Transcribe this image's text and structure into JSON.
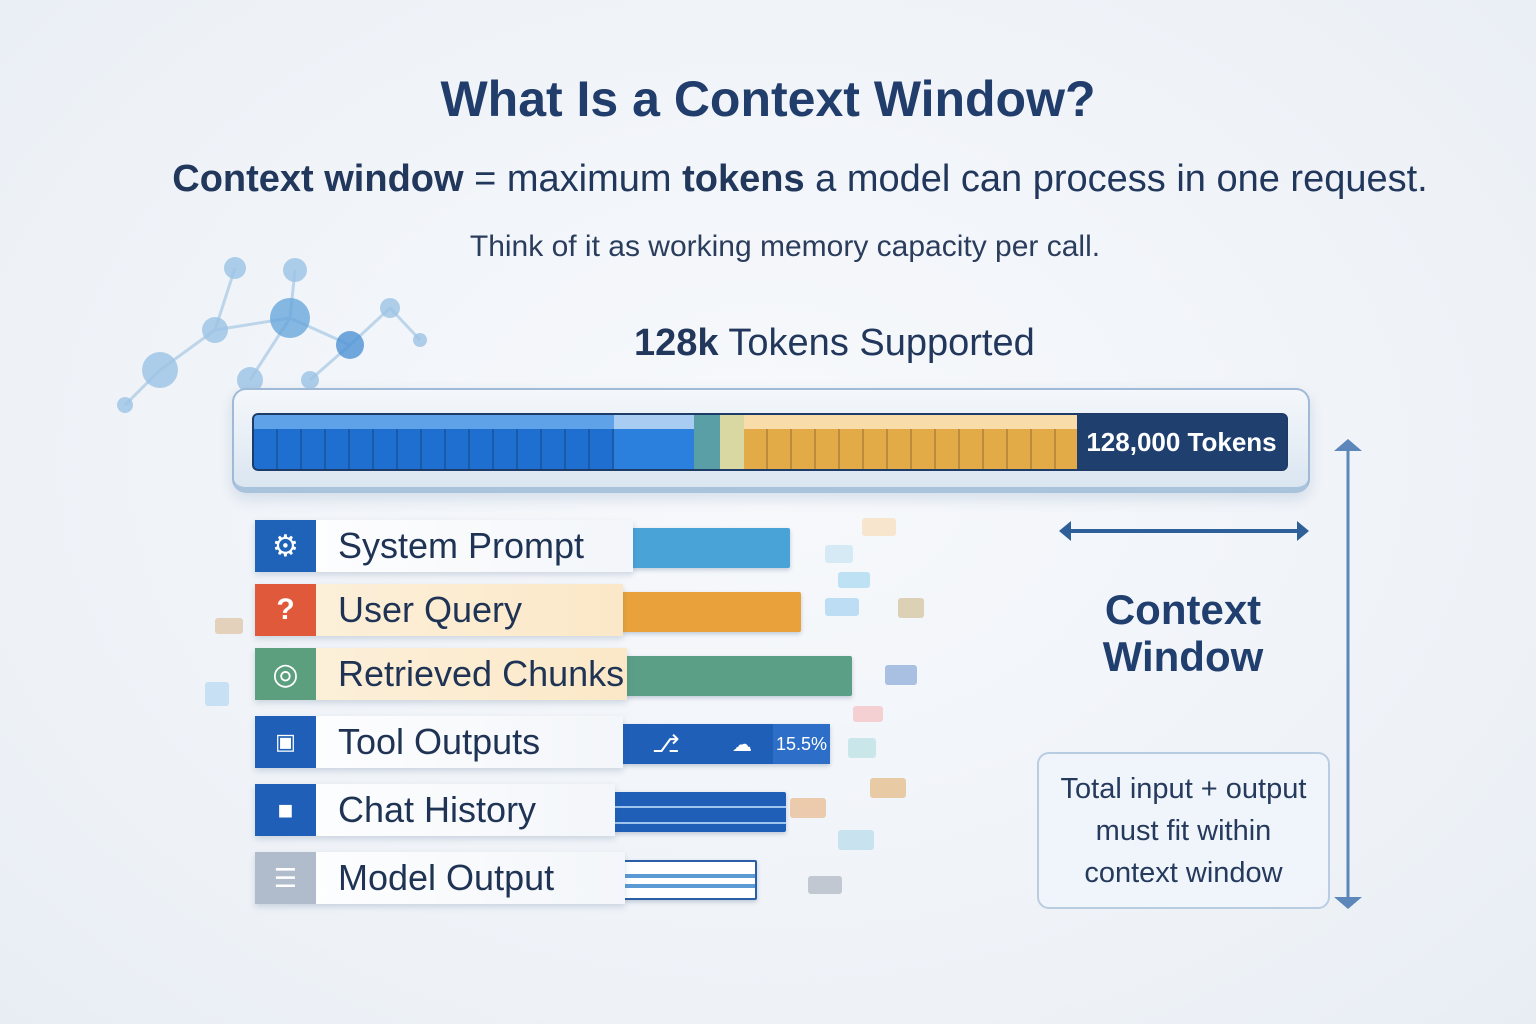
{
  "title": "What Is a Context Window?",
  "subtitle": {
    "term": "Context window",
    "eq": " = maximum ",
    "tokens": "tokens",
    "rest": " a model can process in one request."
  },
  "tagline": "Think of it as working memory capacity per call.",
  "supported": {
    "amount": "128k",
    "text": " Tokens Supported"
  },
  "bar": {
    "label": "128,000 Tokens",
    "colors": [
      "#1f6fd0",
      "#3e8fe0",
      "#5aa0a8",
      "#d8d6a0",
      "#e3ab48",
      "#1f3f6e"
    ]
  },
  "components": [
    {
      "label": "System Prompt",
      "icon": "gear-icon",
      "icon_color": "#1f63b8",
      "bar_color": "#4aa3d6"
    },
    {
      "label": "User Query",
      "icon": "question-icon",
      "icon_color": "#e0593a",
      "bar_color": "#e9a23b"
    },
    {
      "label": "Retrieved Chunks",
      "icon": "globe-icon",
      "icon_color": "#5c9f7e",
      "bar_color": "#5b9f86"
    },
    {
      "label": "Tool Outputs",
      "icon": "terminal-icon",
      "icon_color": "#1f5fb8",
      "bar_color": "#1f5fb8",
      "badge": "15.5%"
    },
    {
      "label": "Chat History",
      "icon": "video-icon",
      "icon_color": "#1f5fb8",
      "bar_color": "#1f5fb8"
    },
    {
      "label": "Model Output",
      "icon": "document-icon",
      "icon_color": "#aab7c8",
      "bar_color": "#ffffff"
    }
  ],
  "context_window": {
    "line1": "Context",
    "line2": "Window"
  },
  "note": {
    "line1": "Total input + output",
    "line2": "must fit within",
    "line3": "context window"
  }
}
